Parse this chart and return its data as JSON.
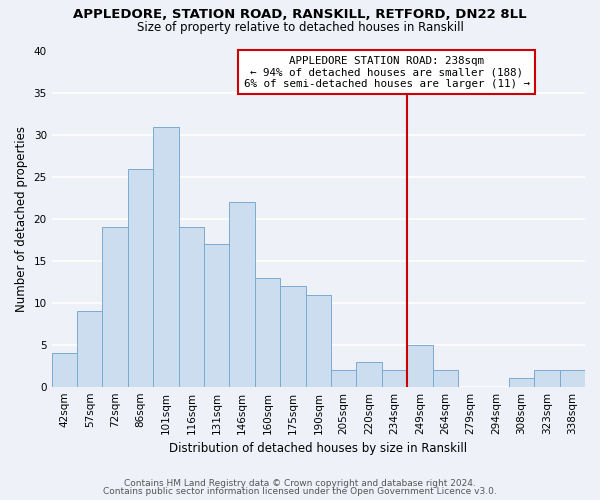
{
  "title1": "APPLEDORE, STATION ROAD, RANSKILL, RETFORD, DN22 8LL",
  "title2": "Size of property relative to detached houses in Ranskill",
  "xlabel": "Distribution of detached houses by size in Ranskill",
  "ylabel": "Number of detached properties",
  "categories": [
    "42sqm",
    "57sqm",
    "72sqm",
    "86sqm",
    "101sqm",
    "116sqm",
    "131sqm",
    "146sqm",
    "160sqm",
    "175sqm",
    "190sqm",
    "205sqm",
    "220sqm",
    "234sqm",
    "249sqm",
    "264sqm",
    "279sqm",
    "294sqm",
    "308sqm",
    "323sqm",
    "338sqm"
  ],
  "values": [
    4,
    9,
    19,
    26,
    31,
    19,
    17,
    22,
    13,
    12,
    11,
    2,
    3,
    2,
    5,
    2,
    0,
    0,
    1,
    2,
    2
  ],
  "bar_color": "#ccddf0",
  "bar_edge_color": "#7aabcf",
  "marker_index": 13,
  "marker_color": "#cc0000",
  "annotation_title": "APPLEDORE STATION ROAD: 238sqm",
  "annotation_line1": "← 94% of detached houses are smaller (188)",
  "annotation_line2": "6% of semi-detached houses are larger (11) →",
  "ylim": [
    0,
    40
  ],
  "yticks": [
    0,
    5,
    10,
    15,
    20,
    25,
    30,
    35,
    40
  ],
  "footer1": "Contains HM Land Registry data © Crown copyright and database right 2024.",
  "footer2": "Contains public sector information licensed under the Open Government Licence v3.0.",
  "bg_color": "#eef2f8",
  "plot_bg_color": "#eef2f8",
  "grid_color": "#ffffff",
  "figsize": [
    6.0,
    5.0
  ],
  "dpi": 100
}
